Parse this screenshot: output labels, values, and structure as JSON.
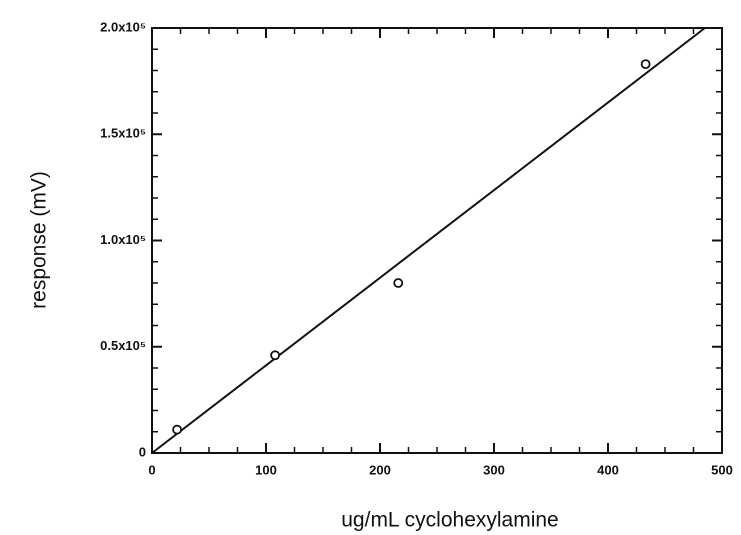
{
  "chart_data": {
    "type": "scatter",
    "xlabel": "ug/mL cyclohexylamine",
    "ylabel": "response (mV)",
    "xlim": [
      0,
      500
    ],
    "ylim": [
      0,
      200000
    ],
    "xticks": [
      0,
      100,
      200,
      300,
      400,
      500
    ],
    "yticks": [
      0,
      {
        "value": 50000,
        "label": "0.5x10⁵"
      },
      {
        "value": 100000,
        "label": "1.0x10⁵"
      },
      {
        "value": 150000,
        "label": "1.5x10⁵"
      },
      {
        "value": 200000,
        "label": "2.0x10⁵"
      }
    ],
    "xminorticks": [
      25,
      50,
      75,
      125,
      150,
      175,
      225,
      250,
      275,
      325,
      350,
      375,
      425,
      450,
      475
    ],
    "yminorticks": [
      10000,
      20000,
      30000,
      40000,
      60000,
      70000,
      80000,
      90000,
      110000,
      120000,
      130000,
      140000,
      160000,
      170000,
      180000,
      190000
    ],
    "series": [
      {
        "color": "#111",
        "x": [
          22,
          108,
          216,
          433
        ],
        "values": [
          11000,
          46000,
          80000,
          183000
        ]
      }
    ],
    "fit_line": {
      "color": "#111",
      "x": [
        0,
        485
      ],
      "values": [
        0,
        200000
      ]
    }
  }
}
